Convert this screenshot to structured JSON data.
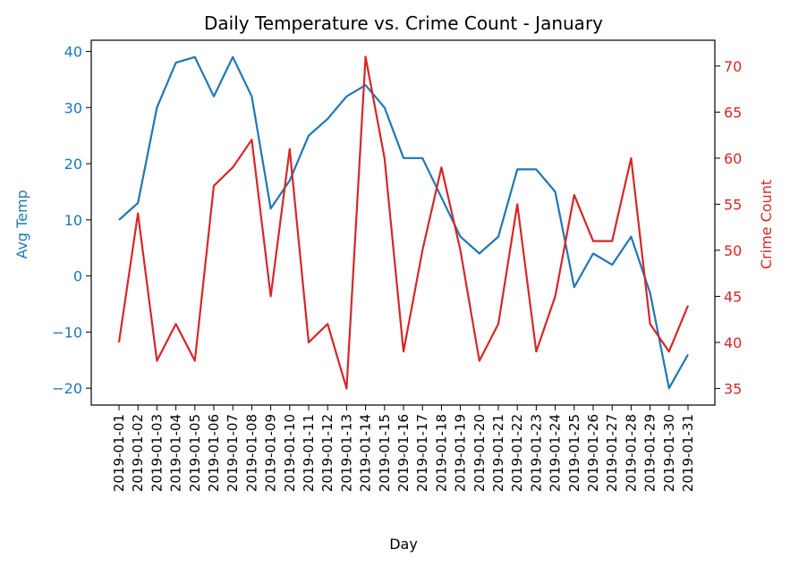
{
  "chart_data": {
    "type": "line",
    "title": "Daily Temperature vs. Crime Count - January",
    "xlabel": "Day",
    "ylabel_left": "Avg Temp",
    "ylabel_right": "Crime Count",
    "categories": [
      "2019-01-01",
      "2019-01-02",
      "2019-01-03",
      "2019-01-04",
      "2019-01-05",
      "2019-01-06",
      "2019-01-07",
      "2019-01-08",
      "2019-01-09",
      "2019-01-10",
      "2019-01-11",
      "2019-01-12",
      "2019-01-13",
      "2019-01-14",
      "2019-01-15",
      "2019-01-16",
      "2019-01-17",
      "2019-01-18",
      "2019-01-19",
      "2019-01-20",
      "2019-01-21",
      "2019-01-22",
      "2019-01-23",
      "2019-01-24",
      "2019-01-25",
      "2019-01-26",
      "2019-01-27",
      "2019-01-28",
      "2019-01-29",
      "2019-01-30",
      "2019-01-31"
    ],
    "series": [
      {
        "axis": "left",
        "color": "#1f77b4",
        "values": [
          10,
          13,
          30,
          38,
          39,
          32,
          39,
          32,
          12,
          17,
          25,
          28,
          32,
          34,
          30,
          21,
          21,
          14,
          7,
          4,
          7,
          19,
          19,
          15,
          -2,
          4,
          2,
          7,
          -3,
          -20,
          -14
        ]
      },
      {
        "axis": "right",
        "color": "#d62728",
        "values": [
          40,
          54,
          38,
          42,
          38,
          57,
          59,
          62,
          45,
          61,
          40,
          42,
          35,
          71,
          60,
          39,
          50,
          59,
          50,
          38,
          42,
          55,
          39,
          45,
          56,
          51,
          51,
          60,
          42,
          39,
          44
        ]
      }
    ],
    "ylim_left": [
      -23,
      42
    ],
    "yticks_left": [
      -20,
      -10,
      0,
      10,
      20,
      30,
      40
    ],
    "ylim_right": [
      33.2,
      72.8
    ],
    "yticks_right": [
      35,
      40,
      45,
      50,
      55,
      60,
      65,
      70
    ],
    "left_color": "#1f77b4",
    "right_color": "#d62728",
    "grid": false,
    "legend": "none"
  }
}
